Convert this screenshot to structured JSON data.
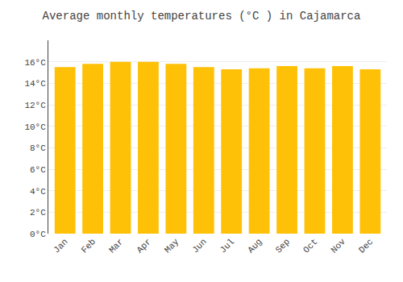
{
  "chart_data": {
    "type": "bar",
    "title": "Average monthly temperatures (°C ) in Cajamarca",
    "categories": [
      "Jan",
      "Feb",
      "Mar",
      "Apr",
      "May",
      "Jun",
      "Jul",
      "Aug",
      "Sep",
      "Oct",
      "Nov",
      "Dec"
    ],
    "values": [
      15.5,
      15.8,
      16.0,
      16.0,
      15.8,
      15.5,
      15.3,
      15.4,
      15.6,
      15.4,
      15.6,
      15.3
    ],
    "color": "#FFC107",
    "ylim": [
      0,
      18
    ],
    "yticks": [
      {
        "value": 0,
        "label": "0°C"
      },
      {
        "value": 2,
        "label": "2°C"
      },
      {
        "value": 4,
        "label": "4°C"
      },
      {
        "value": 6,
        "label": "6°C"
      },
      {
        "value": 8,
        "label": "8°C"
      },
      {
        "value": 10,
        "label": "10°C"
      },
      {
        "value": 12,
        "label": "12°C"
      },
      {
        "value": 14,
        "label": "14°C"
      },
      {
        "value": 16,
        "label": "16°C"
      }
    ],
    "grid": true
  }
}
